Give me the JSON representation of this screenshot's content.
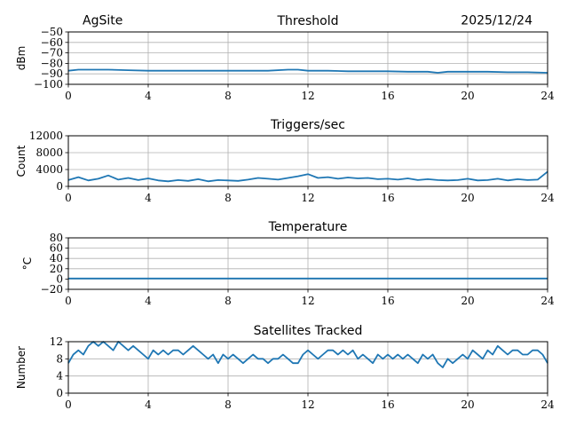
{
  "header": {
    "site": "AgSite",
    "date": "2025/12/24"
  },
  "colors": {
    "line": "#1f77b4",
    "grid": "#b0b0b0",
    "axes": "#000000"
  },
  "chart_data": [
    {
      "type": "line",
      "title": "Threshold",
      "ylabel": "dBm",
      "xlim": [
        0,
        24
      ],
      "ylim": [
        -100,
        -50
      ],
      "xticks": [
        0,
        4,
        8,
        12,
        16,
        20,
        24
      ],
      "yticks": [
        -100,
        -90,
        -80,
        -70,
        -60,
        -50
      ],
      "grid": true,
      "series": [
        {
          "x": [
            0,
            0.5,
            1,
            2,
            3,
            4,
            5,
            6,
            7,
            8,
            9,
            10,
            11,
            11.5,
            12,
            13,
            14,
            15,
            16,
            17,
            18,
            18.5,
            19,
            20,
            21,
            22,
            23,
            24
          ],
          "y": [
            -87,
            -86,
            -86,
            -86,
            -86.5,
            -87,
            -87,
            -87,
            -87,
            -87,
            -87,
            -87,
            -86,
            -86,
            -87,
            -87,
            -87.5,
            -87.5,
            -87.5,
            -88,
            -88,
            -89,
            -88,
            -88,
            -88,
            -88.5,
            -88.5,
            -89
          ]
        }
      ]
    },
    {
      "type": "line",
      "title": "Triggers/sec",
      "ylabel": "Count",
      "xlim": [
        0,
        24
      ],
      "ylim": [
        0,
        12000
      ],
      "xticks": [
        0,
        4,
        8,
        12,
        16,
        20,
        24
      ],
      "yticks": [
        0,
        4000,
        8000,
        12000
      ],
      "grid": true,
      "series": [
        {
          "x": [
            0,
            0.5,
            1,
            1.5,
            2,
            2.5,
            3,
            3.5,
            4,
            4.5,
            5,
            5.5,
            6,
            6.5,
            7,
            7.5,
            8,
            8.5,
            9,
            9.5,
            10,
            10.5,
            11,
            11.5,
            12,
            12.5,
            13,
            13.5,
            14,
            14.5,
            15,
            15.5,
            16,
            16.5,
            17,
            17.5,
            18,
            18.5,
            19,
            19.5,
            20,
            20.5,
            21,
            21.5,
            22,
            22.5,
            23,
            23.5,
            24
          ],
          "y": [
            1500,
            2200,
            1400,
            1800,
            2600,
            1600,
            2000,
            1500,
            1900,
            1400,
            1200,
            1500,
            1300,
            1700,
            1200,
            1500,
            1400,
            1300,
            1600,
            2000,
            1800,
            1600,
            2000,
            2400,
            2900,
            2000,
            2200,
            1800,
            2100,
            1900,
            2000,
            1700,
            1800,
            1600,
            1900,
            1500,
            1700,
            1500,
            1400,
            1500,
            1800,
            1400,
            1500,
            1800,
            1400,
            1700,
            1500,
            1600,
            3500
          ]
        }
      ]
    },
    {
      "type": "line",
      "title": "Temperature",
      "ylabel": "°C",
      "xlim": [
        0,
        24
      ],
      "ylim": [
        -20,
        80
      ],
      "xticks": [
        0,
        4,
        8,
        12,
        16,
        20,
        24
      ],
      "yticks": [
        -20,
        0,
        20,
        40,
        60,
        80
      ],
      "grid": true,
      "series": [
        {
          "x": [
            0,
            24
          ],
          "y": [
            1,
            1
          ]
        }
      ]
    },
    {
      "type": "line",
      "title": "Satellites Tracked",
      "ylabel": "Number",
      "xlim": [
        0,
        24
      ],
      "ylim": [
        0,
        12
      ],
      "xticks": [
        0,
        4,
        8,
        12,
        16,
        20,
        24
      ],
      "yticks": [
        0,
        4,
        8,
        12
      ],
      "grid": true,
      "series": [
        {
          "x": [
            0,
            0.25,
            0.5,
            0.75,
            1,
            1.25,
            1.5,
            1.75,
            2,
            2.25,
            2.5,
            2.75,
            3,
            3.25,
            3.5,
            3.75,
            4,
            4.25,
            4.5,
            4.75,
            5,
            5.25,
            5.5,
            5.75,
            6,
            6.25,
            6.5,
            6.75,
            7,
            7.25,
            7.5,
            7.75,
            8,
            8.25,
            8.5,
            8.75,
            9,
            9.25,
            9.5,
            9.75,
            10,
            10.25,
            10.5,
            10.75,
            11,
            11.25,
            11.5,
            11.75,
            12,
            12.25,
            12.5,
            12.75,
            13,
            13.25,
            13.5,
            13.75,
            14,
            14.25,
            14.5,
            14.75,
            15,
            15.25,
            15.5,
            15.75,
            16,
            16.25,
            16.5,
            16.75,
            17,
            17.25,
            17.5,
            17.75,
            18,
            18.25,
            18.5,
            18.75,
            19,
            19.25,
            19.5,
            19.75,
            20,
            20.25,
            20.5,
            20.75,
            21,
            21.25,
            21.5,
            21.75,
            22,
            22.25,
            22.5,
            22.75,
            23,
            23.25,
            23.5,
            23.75,
            24
          ],
          "y": [
            7,
            9,
            10,
            9,
            11,
            12,
            11,
            12,
            11,
            10,
            12,
            11,
            10,
            11,
            10,
            9,
            8,
            10,
            9,
            10,
            9,
            10,
            10,
            9,
            10,
            11,
            10,
            9,
            8,
            9,
            7,
            9,
            8,
            9,
            8,
            7,
            8,
            9,
            8,
            8,
            7,
            8,
            8,
            9,
            8,
            7,
            7,
            9,
            10,
            9,
            8,
            9,
            10,
            10,
            9,
            10,
            9,
            10,
            8,
            9,
            8,
            7,
            9,
            8,
            9,
            8,
            9,
            8,
            9,
            8,
            7,
            9,
            8,
            9,
            7,
            6,
            8,
            7,
            8,
            9,
            8,
            10,
            9,
            8,
            10,
            9,
            11,
            10,
            9,
            10,
            10,
            9,
            9,
            10,
            10,
            9,
            7
          ]
        }
      ]
    }
  ]
}
